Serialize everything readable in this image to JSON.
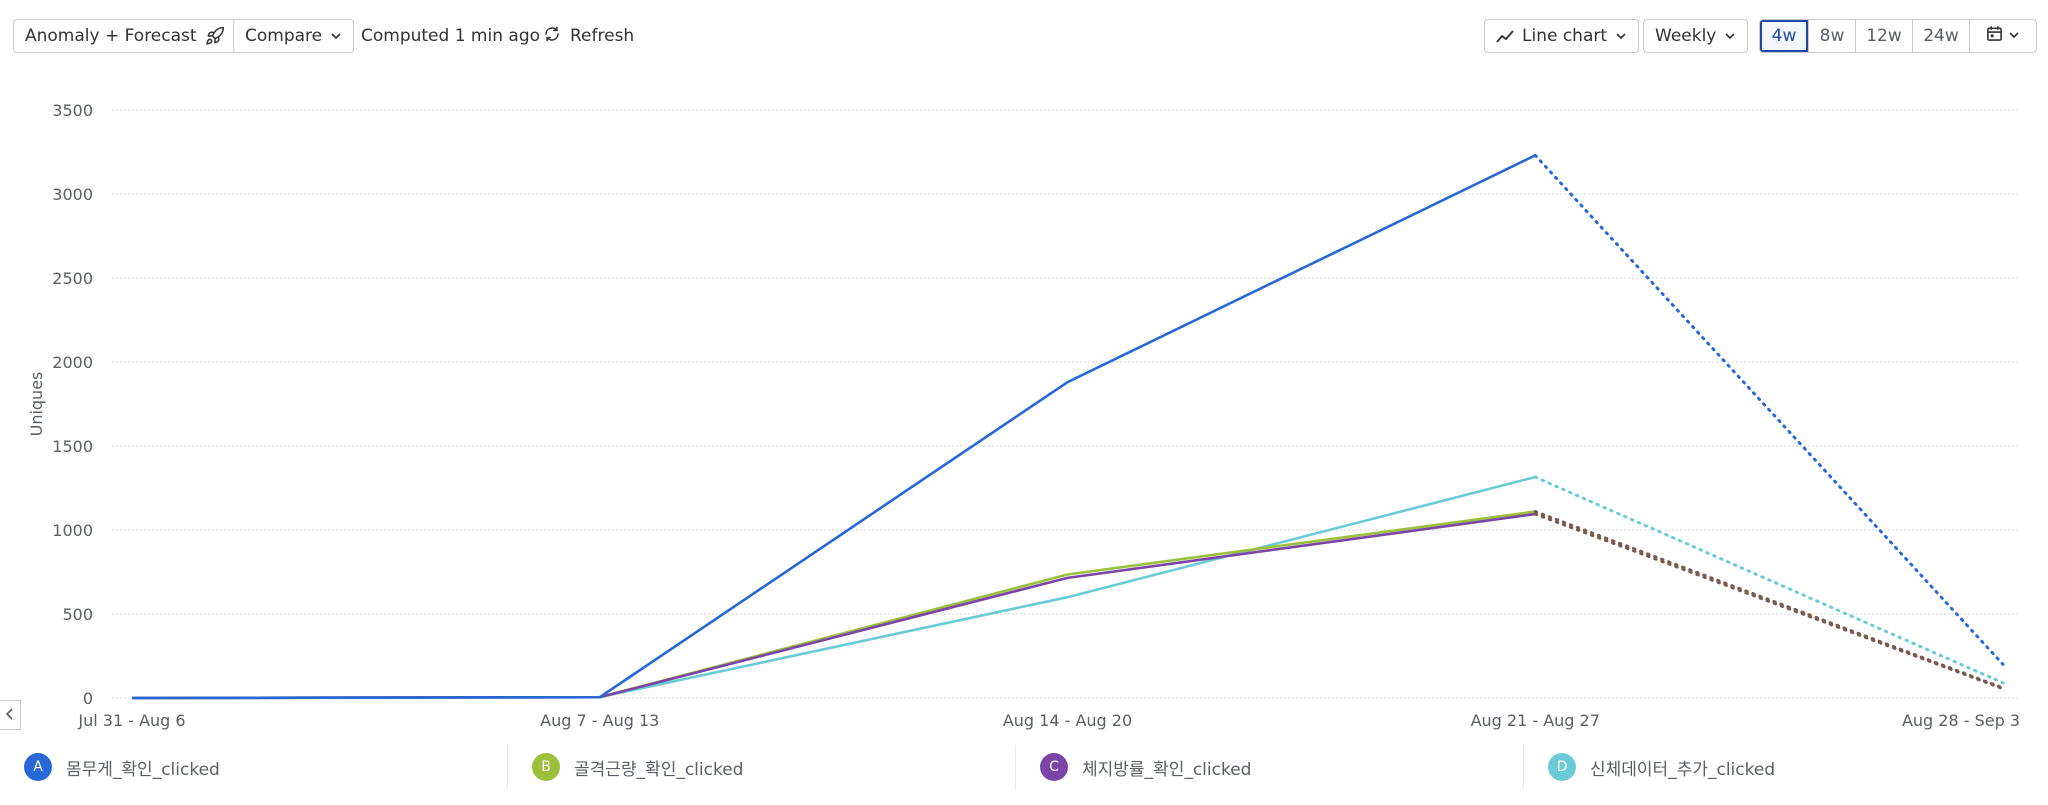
{
  "toolbar": {
    "anomaly_label": "Anomaly + Forecast",
    "compare_label": "Compare",
    "computed_text": "Computed 1 min ago",
    "refresh_label": "Refresh",
    "chart_type_label": "Line chart",
    "interval_label": "Weekly",
    "ranges": [
      {
        "label": "4w",
        "active": true
      },
      {
        "label": "8w",
        "active": false
      },
      {
        "label": "12w",
        "active": false
      },
      {
        "label": "24w",
        "active": false
      }
    ]
  },
  "colors": {
    "A": "#2767d6",
    "B": "#9bc13c",
    "C": "#7b45a8",
    "D": "#6acbd6",
    "forecast_dark": "#7a5a50"
  },
  "chart_data": {
    "type": "line",
    "ylabel": "Uniques",
    "ylim": [
      0,
      3500
    ],
    "yticks": [
      0,
      500,
      1000,
      1500,
      2000,
      2500,
      3000,
      3500
    ],
    "categories": [
      "Jul 31 - Aug 6",
      "Aug 7 - Aug 13",
      "Aug 14 - Aug 20",
      "Aug 21 - Aug 27",
      "Aug 28 - Sep 3"
    ],
    "grid": true,
    "forecast_from_index": 3,
    "series": [
      {
        "key": "A",
        "name": "몸무게_확인_clicked",
        "values": [
          0,
          5,
          1880,
          3230,
          200
        ]
      },
      {
        "key": "B",
        "name": "골격근량_확인_clicked",
        "values": [
          0,
          5,
          735,
          1110,
          60
        ]
      },
      {
        "key": "C",
        "name": "체지방률_확인_clicked",
        "values": [
          0,
          5,
          715,
          1095,
          55
        ]
      },
      {
        "key": "D",
        "name": "신체데이터_추가_clicked",
        "values": [
          0,
          5,
          600,
          1315,
          90
        ]
      }
    ]
  },
  "legend": [
    {
      "badge": "A",
      "label": "몸무게_확인_clicked"
    },
    {
      "badge": "B",
      "label": "골격근량_확인_clicked"
    },
    {
      "badge": "C",
      "label": "체지방률_확인_clicked"
    },
    {
      "badge": "D",
      "label": "신체데이터_추가_clicked"
    }
  ]
}
